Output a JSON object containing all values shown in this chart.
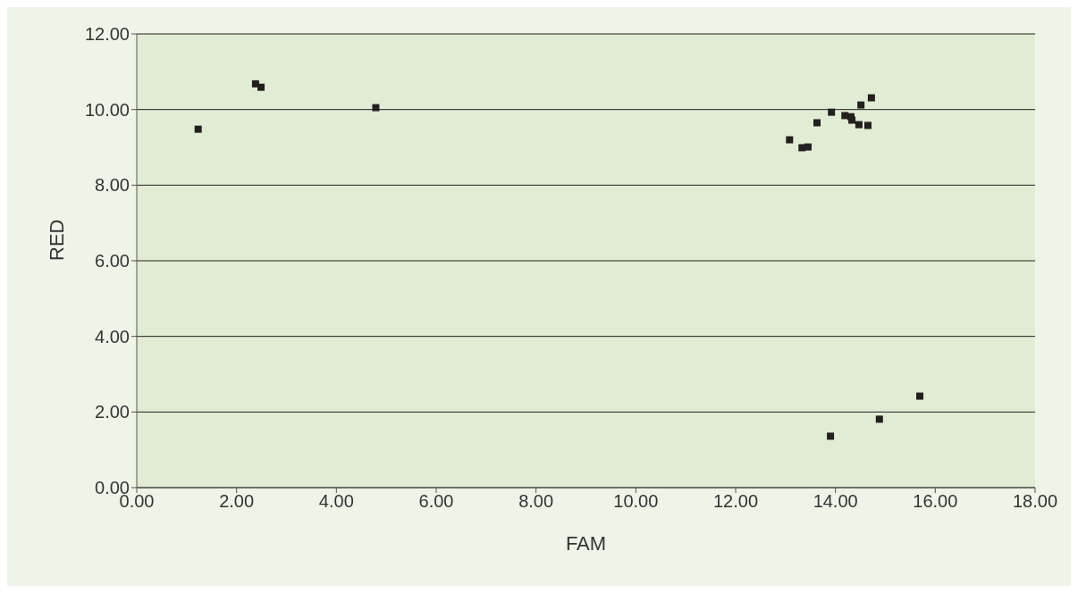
{
  "chart_data": {
    "type": "scatter",
    "xlabel": "FAM",
    "ylabel": "RED",
    "x": [
      1.23,
      2.38,
      2.49,
      4.79,
      13.08,
      13.33,
      13.45,
      13.63,
      13.92,
      14.19,
      14.31,
      14.33,
      14.47,
      14.65,
      14.51,
      14.72,
      13.9,
      14.88,
      15.69
    ],
    "values": [
      9.48,
      10.68,
      10.59,
      10.05,
      9.2,
      8.99,
      9.01,
      9.65,
      9.93,
      9.84,
      9.81,
      9.72,
      9.6,
      9.58,
      10.12,
      10.31,
      1.36,
      1.81,
      2.42
    ],
    "color": "#231f20",
    "marker": "square",
    "xlim": [
      0,
      18
    ],
    "xticks": [
      {
        "value": 0,
        "label": "0.00"
      },
      {
        "value": 2,
        "label": "2.00"
      },
      {
        "value": 4,
        "label": "4.00"
      },
      {
        "value": 6,
        "label": "6.00"
      },
      {
        "value": 8,
        "label": "8.00"
      },
      {
        "value": 10,
        "label": "10.00"
      },
      {
        "value": 12,
        "label": "12.00"
      },
      {
        "value": 14,
        "label": "14.00"
      },
      {
        "value": 16,
        "label": "16.00"
      },
      {
        "value": 18,
        "label": "18.00"
      }
    ],
    "ylim": [
      0,
      12
    ],
    "yticks": [
      {
        "value": 0,
        "label": "0.00"
      },
      {
        "value": 2,
        "label": "2.00"
      },
      {
        "value": 4,
        "label": "4.00"
      },
      {
        "value": 6,
        "label": "6.00"
      },
      {
        "value": 8,
        "label": "8.00"
      },
      {
        "value": 10,
        "label": "10.00"
      },
      {
        "value": 12,
        "label": "12.00"
      }
    ],
    "grid": "y"
  }
}
